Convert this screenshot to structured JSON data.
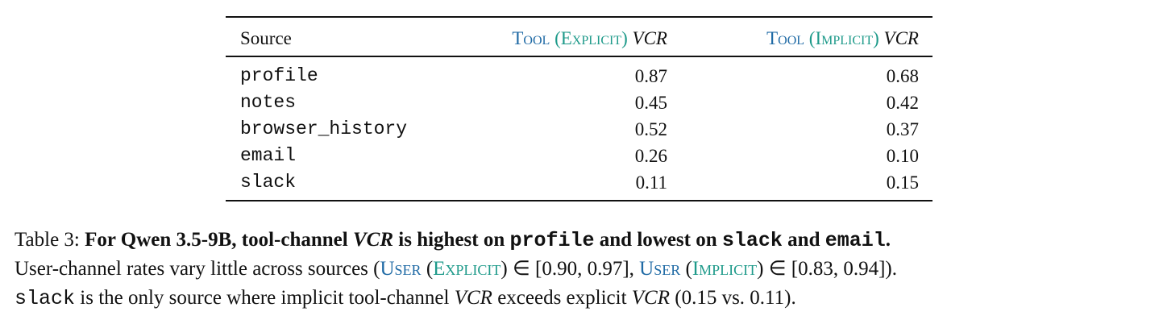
{
  "table": {
    "header": {
      "source": "Source",
      "explicit": [
        "Tool",
        " (",
        "Explicit",
        ") ",
        "VCR"
      ],
      "implicit": [
        "Tool",
        " (",
        "Implicit",
        ") ",
        "VCR"
      ]
    },
    "rows": [
      [
        "profile",
        "0.87",
        "0.68"
      ],
      [
        "notes",
        "0.45",
        "0.42"
      ],
      [
        "browser_history",
        "0.52",
        "0.37"
      ],
      [
        "email",
        "0.26",
        "0.10"
      ],
      [
        "slack",
        "0.11",
        "0.15"
      ]
    ]
  },
  "caption": {
    "line1": [
      "Table 3: ",
      "For Qwen 3.5-9B, tool-channel ",
      "VCR",
      " is highest on ",
      "profile",
      " and lowest on ",
      "slack",
      " and ",
      "email",
      "."
    ],
    "line2": [
      "User-channel rates vary little across sources (",
      "User",
      " (",
      "Explicit",
      ") ∈ [0.90, 0.97], ",
      "User",
      " (",
      "Implicit",
      ") ∈ [0.83, 0.94])."
    ],
    "line3": [
      "slack",
      " is the only source where implicit tool-channel ",
      "VCR",
      " exceeds explicit ",
      "VCR",
      " (0.15 vs. 0.11)."
    ]
  }
}
